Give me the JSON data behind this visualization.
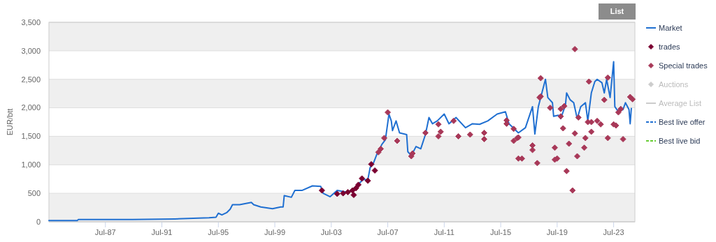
{
  "chart_data": {
    "type": "line",
    "ylabel": "EUR/btt",
    "xlim": [
      "1983-07",
      "2025-01"
    ],
    "xticks": [
      {
        "value": "1987-07",
        "label": "Jul-87"
      },
      {
        "value": "1991-07",
        "label": "Jul-91"
      },
      {
        "value": "1995-07",
        "label": "Jul-95"
      },
      {
        "value": "1999-07",
        "label": "Jul-99"
      },
      {
        "value": "2003-07",
        "label": "Jul-03"
      },
      {
        "value": "2007-07",
        "label": "Jul-07"
      },
      {
        "value": "2011-07",
        "label": "Jul-11"
      },
      {
        "value": "2015-07",
        "label": "Jul-15"
      },
      {
        "value": "2019-07",
        "label": "Jul-19"
      },
      {
        "value": "2023-07",
        "label": "Jul-23"
      }
    ],
    "ylim": [
      0,
      3500
    ],
    "yticks": [
      {
        "value": 0,
        "label": "0"
      },
      {
        "value": 500,
        "label": "500"
      },
      {
        "value": 1000,
        "label": "1,000"
      },
      {
        "value": 1500,
        "label": "1,500"
      },
      {
        "value": 2000,
        "label": "2,000"
      },
      {
        "value": 2500,
        "label": "2,500"
      },
      {
        "value": 3000,
        "label": "3,000"
      },
      {
        "value": 3500,
        "label": "3,500"
      }
    ],
    "grid": "y",
    "legend": "right",
    "annotations": [
      "List"
    ],
    "series": [
      {
        "name": "Market",
        "color": "#1f6fd1",
        "line_style": "solid",
        "marker": "none",
        "x": [
          "1983-07",
          "1985-07",
          "1985-08",
          "1989-06",
          "1992-06",
          "1994-11",
          "1995-05",
          "1995-07",
          "1995-10",
          "1996-02",
          "1996-05",
          "1996-07",
          "1997-01",
          "1997-11",
          "1998-01",
          "1998-07",
          "1999-05",
          "1999-12",
          "2000-02",
          "2000-03",
          "2000-09",
          "2000-12",
          "2001-06",
          "2002-03",
          "2002-10",
          "2002-12",
          "2003-06",
          "2003-12",
          "2004-08",
          "2004-12",
          "2005-04",
          "2005-10",
          "2006-02",
          "2006-04",
          "2006-07",
          "2006-10",
          "2007-02",
          "2007-05",
          "2007-08",
          "2007-10",
          "2007-11",
          "2008-02",
          "2008-05",
          "2008-11",
          "2008-12",
          "2009-03",
          "2009-07",
          "2009-11",
          "2010-03",
          "2010-06",
          "2010-09",
          "2011-01",
          "2011-07",
          "2011-11",
          "2012-05",
          "2013-01",
          "2013-07",
          "2014-01",
          "2014-08",
          "2015-04",
          "2015-11",
          "2016-02",
          "2016-10",
          "2017-04",
          "2017-10",
          "2017-12",
          "2018-03",
          "2018-06",
          "2018-09",
          "2018-11",
          "2019-03",
          "2019-04",
          "2019-08",
          "2019-10",
          "2020-02",
          "2020-03",
          "2020-06",
          "2020-09",
          "2020-12",
          "2021-03",
          "2021-07",
          "2021-09",
          "2021-12",
          "2022-03",
          "2022-05",
          "2022-09",
          "2022-11",
          "2023-01",
          "2023-04",
          "2023-07",
          "2023-08",
          "2023-11",
          "2024-03",
          "2024-05",
          "2024-08",
          "2024-09",
          "2024-10"
        ],
        "values": [
          20,
          20,
          40,
          40,
          50,
          70,
          80,
          150,
          120,
          160,
          220,
          300,
          300,
          340,
          300,
          260,
          230,
          260,
          260,
          460,
          430,
          550,
          550,
          630,
          620,
          500,
          440,
          550,
          520,
          550,
          620,
          740,
          740,
          950,
          1040,
          1200,
          1360,
          1440,
          1890,
          1770,
          1600,
          1770,
          1560,
          1530,
          1230,
          1160,
          1320,
          1280,
          1530,
          1830,
          1720,
          1770,
          1890,
          1720,
          1830,
          1650,
          1720,
          1710,
          1770,
          1890,
          1930,
          1720,
          1560,
          1650,
          2020,
          1540,
          2020,
          2260,
          2500,
          2180,
          2090,
          1850,
          1870,
          1810,
          2050,
          2260,
          2140,
          2090,
          1810,
          2020,
          2090,
          1770,
          2260,
          2460,
          2500,
          2440,
          2260,
          2500,
          2180,
          2810,
          2020,
          1930,
          1970,
          2090,
          1970,
          1720,
          1990
        ]
      },
      {
        "name": "trades",
        "type": "scatter",
        "color": "#7a0030",
        "marker": "diamond",
        "x": [
          "2002-11",
          "2003-12",
          "2004-05",
          "2004-09",
          "2005-01",
          "2005-02",
          "2005-04",
          "2005-06",
          "2005-09",
          "2006-02",
          "2006-05",
          "2006-08"
        ],
        "values": [
          550,
          490,
          500,
          520,
          550,
          470,
          590,
          650,
          760,
          720,
          1010,
          900
        ]
      },
      {
        "name": "Special trades",
        "type": "scatter",
        "color": "#a83858",
        "marker": "diamond",
        "x": [
          "2006-11",
          "2007-01",
          "2007-04",
          "2007-07",
          "2008-03",
          "2009-03",
          "2009-04",
          "2010-03",
          "2011-02",
          "2011-02",
          "2011-04",
          "2012-03",
          "2012-07",
          "2013-05",
          "2014-05",
          "2014-05",
          "2015-12",
          "2015-12",
          "2016-06",
          "2016-06",
          "2016-09",
          "2016-10",
          "2016-10",
          "2017-01",
          "2017-10",
          "2017-10",
          "2018-02",
          "2018-04",
          "2018-05",
          "2018-05",
          "2019-01",
          "2019-05",
          "2019-05",
          "2019-07",
          "2019-10",
          "2019-10",
          "2019-12",
          "2020-01",
          "2020-03",
          "2020-05",
          "2020-08",
          "2020-10",
          "2020-10",
          "2020-12",
          "2021-01",
          "2021-06",
          "2021-07",
          "2021-09",
          "2021-10",
          "2021-12",
          "2021-12",
          "2022-05",
          "2022-08",
          "2022-11",
          "2023-02",
          "2023-02",
          "2023-07",
          "2023-09",
          "2023-11",
          "2024-01",
          "2024-03",
          "2024-09",
          "2024-11"
        ],
        "values": [
          1220,
          1280,
          1470,
          1920,
          1420,
          1150,
          1200,
          1560,
          1500,
          1710,
          1580,
          1770,
          1500,
          1530,
          1560,
          1450,
          1780,
          1720,
          1630,
          1420,
          1470,
          1480,
          1110,
          1110,
          1340,
          1260,
          1030,
          2180,
          2200,
          2520,
          2000,
          1300,
          1090,
          1110,
          1980,
          1850,
          1640,
          2030,
          890,
          1370,
          550,
          3030,
          1550,
          1150,
          1830,
          1300,
          1470,
          1750,
          2460,
          1750,
          1580,
          1770,
          1710,
          2140,
          1470,
          2530,
          1710,
          1690,
          1920,
          1980,
          1450,
          2190,
          2150
        ]
      },
      {
        "name": "Auctions",
        "type": "scatter",
        "color": "#cccccc",
        "marker": "diamond"
      },
      {
        "name": "Average List",
        "type": "line",
        "color": "#cccccc",
        "line_style": "solid",
        "marker": "none"
      },
      {
        "name": "Best live offer",
        "type": "line",
        "color": "#1f6fd1",
        "line_style": "dashed",
        "marker": "none"
      },
      {
        "name": "Best live bid",
        "type": "line",
        "color": "#66cc33",
        "line_style": "dashed",
        "marker": "none"
      }
    ]
  }
}
